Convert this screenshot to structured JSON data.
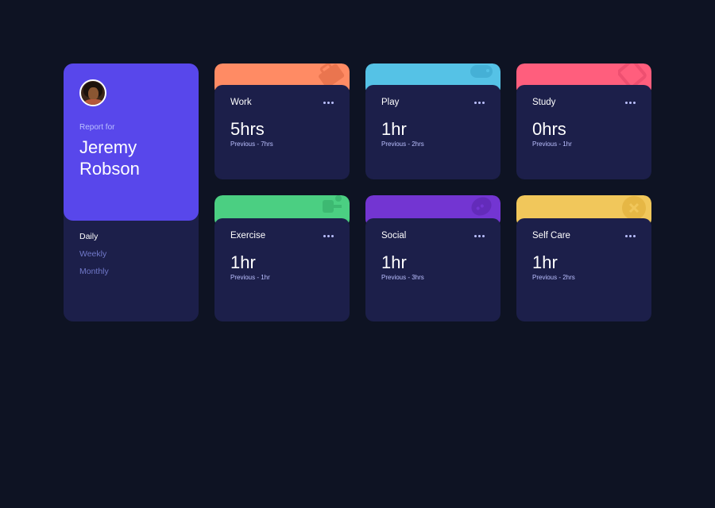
{
  "profile": {
    "report_label": "Report for",
    "name": "Jeremy Robson",
    "periods": [
      {
        "label": "Daily",
        "active": true
      },
      {
        "label": "Weekly",
        "active": false
      },
      {
        "label": "Monthly",
        "active": false
      }
    ]
  },
  "activities": [
    {
      "title": "Work",
      "hours": "5hrs",
      "previous": "Previous - 7hrs",
      "color": "#ff8b64",
      "icon": "briefcase-icon"
    },
    {
      "title": "Play",
      "hours": "1hr",
      "previous": "Previous - 2hrs",
      "color": "#55c2e6",
      "icon": "gamepad-icon"
    },
    {
      "title": "Study",
      "hours": "0hrs",
      "previous": "Previous - 1hr",
      "color": "#ff5e7d",
      "icon": "book-icon"
    },
    {
      "title": "Exercise",
      "hours": "1hr",
      "previous": "Previous - 1hr",
      "color": "#4bcf82",
      "icon": "running-icon"
    },
    {
      "title": "Social",
      "hours": "1hr",
      "previous": "Previous - 3hrs",
      "color": "#7335d2",
      "icon": "speech-bubble-icon"
    },
    {
      "title": "Self Care",
      "hours": "1hr",
      "previous": "Previous - 2hrs",
      "color": "#f1c75b",
      "icon": "heart-cross-icon"
    }
  ],
  "colors": {
    "background": "#0e1323",
    "card": "#1c1f4a",
    "profile_accent": "#5847eb",
    "muted_text": "#bbc0ff"
  }
}
